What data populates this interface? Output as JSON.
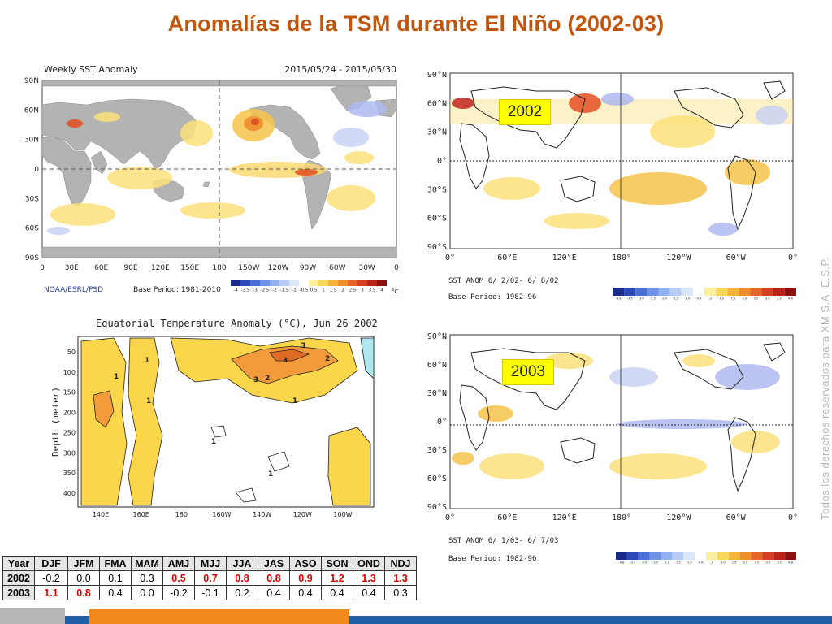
{
  "title": "Anomalías de la TSM durante El Niño (2002-03)",
  "watermark": "Todos los derechos reservados para XM S.A. E.S.P.",
  "weekly_map": {
    "title": "Weekly SST Anomaly",
    "date_range": "2015/05/24 - 2015/05/30",
    "lat_labels": [
      "90N",
      "60N",
      "30N",
      "0",
      "30S",
      "60S",
      "90S"
    ],
    "lon_labels": [
      "0",
      "30E",
      "60E",
      "90E",
      "120E",
      "150E",
      "180",
      "150W",
      "120W",
      "90W",
      "60W",
      "30W",
      "0"
    ],
    "credit": "NOAA/ESRL/PSD",
    "base_period": "Base Period: 1981-2010",
    "scale_labels": [
      "-4",
      "-3.5",
      "-3",
      "-2.5",
      "-2",
      "-1.5",
      "-1",
      "-0.5",
      "0.5",
      "1",
      "1.5",
      "2",
      "2.5",
      "3",
      "3.5",
      "4"
    ],
    "unit": "°C"
  },
  "equatorial_section": {
    "title": "Equatorial Temperature Anomaly (°C), Jun 26 2002",
    "y_label": "Depth (meter)",
    "depth_ticks": [
      "50",
      "100",
      "150",
      "200",
      "250",
      "300",
      "350",
      "400"
    ],
    "lon_ticks": [
      "140E",
      "160E",
      "180",
      "160W",
      "140W",
      "120W",
      "100W"
    ],
    "contour_labels": [
      "1",
      "1",
      "2",
      "3",
      "3",
      "3",
      "2",
      "1",
      "1",
      "1",
      "1"
    ]
  },
  "map_2002": {
    "year_label": "2002",
    "lat_labels": [
      "90°N",
      "60°N",
      "30°N",
      "0°",
      "30°S",
      "60°S",
      "90°S"
    ],
    "lon_labels": [
      "0°",
      "60°E",
      "120°E",
      "180°",
      "120°W",
      "60°W",
      "0°"
    ],
    "caption": "SST ANOM  6/ 2/02- 6/ 8/02",
    "base_period": "Base Period: 1982-96",
    "scale_labels": [
      "-4.6",
      "-3.5",
      "-3.0",
      "-2.5",
      "-2.0",
      "-1.5",
      "-1.0",
      "-0.6",
      ".3",
      "1.0",
      "1.5",
      "2.0",
      "2.5",
      "3.0",
      "3.5",
      "4.6"
    ]
  },
  "map_2003": {
    "year_label": "2003",
    "lat_labels": [
      "90°N",
      "60°N",
      "30°N",
      "0°",
      "30°S",
      "60°S",
      "90°S"
    ],
    "lon_labels": [
      "0°",
      "60°E",
      "120°E",
      "180°",
      "120°W",
      "60°W",
      "0°"
    ],
    "caption": "SST ANOM  6/ 1/03- 6/ 7/03",
    "base_period": "Base Period: 1982-96",
    "scale_labels": [
      "-4.6",
      "-3.5",
      "-3.0",
      "-2.5",
      "-2.0",
      "-1.5",
      "-1.0",
      "-0.6",
      ".3",
      "1.0",
      "1.5",
      "2.0",
      "2.5",
      "3.0",
      "3.5",
      "4.6"
    ]
  },
  "oni_table": {
    "headers": [
      "Year",
      "DJF",
      "JFM",
      "FMA",
      "MAM",
      "AMJ",
      "MJJ",
      "JJA",
      "JAS",
      "ASO",
      "SON",
      "OND",
      "NDJ"
    ],
    "rows": [
      {
        "year": "2002",
        "values": [
          "-0.2",
          "0.0",
          "0.1",
          "0.3",
          "0.5",
          "0.7",
          "0.8",
          "0.8",
          "0.9",
          "1.2",
          "1.3",
          "1.3"
        ],
        "highlight": [
          false,
          false,
          false,
          false,
          true,
          true,
          true,
          true,
          true,
          true,
          true,
          true
        ]
      },
      {
        "year": "2003",
        "values": [
          "1.1",
          "0.8",
          "0.4",
          "0.0",
          "-0.2",
          "-0.1",
          "0.2",
          "0.4",
          "0.4",
          "0.4",
          "0.4",
          "0.3"
        ],
        "highlight": [
          true,
          true,
          false,
          false,
          false,
          false,
          false,
          false,
          false,
          false,
          false,
          false
        ]
      }
    ]
  },
  "colors": {
    "title": "#c0560e",
    "highlight_text": "#e00000",
    "year_box": "#ffff00",
    "bar_blue": "#1f5fa8",
    "bar_orange": "#f08a1c",
    "bar_gray": "#b8b8b8"
  }
}
